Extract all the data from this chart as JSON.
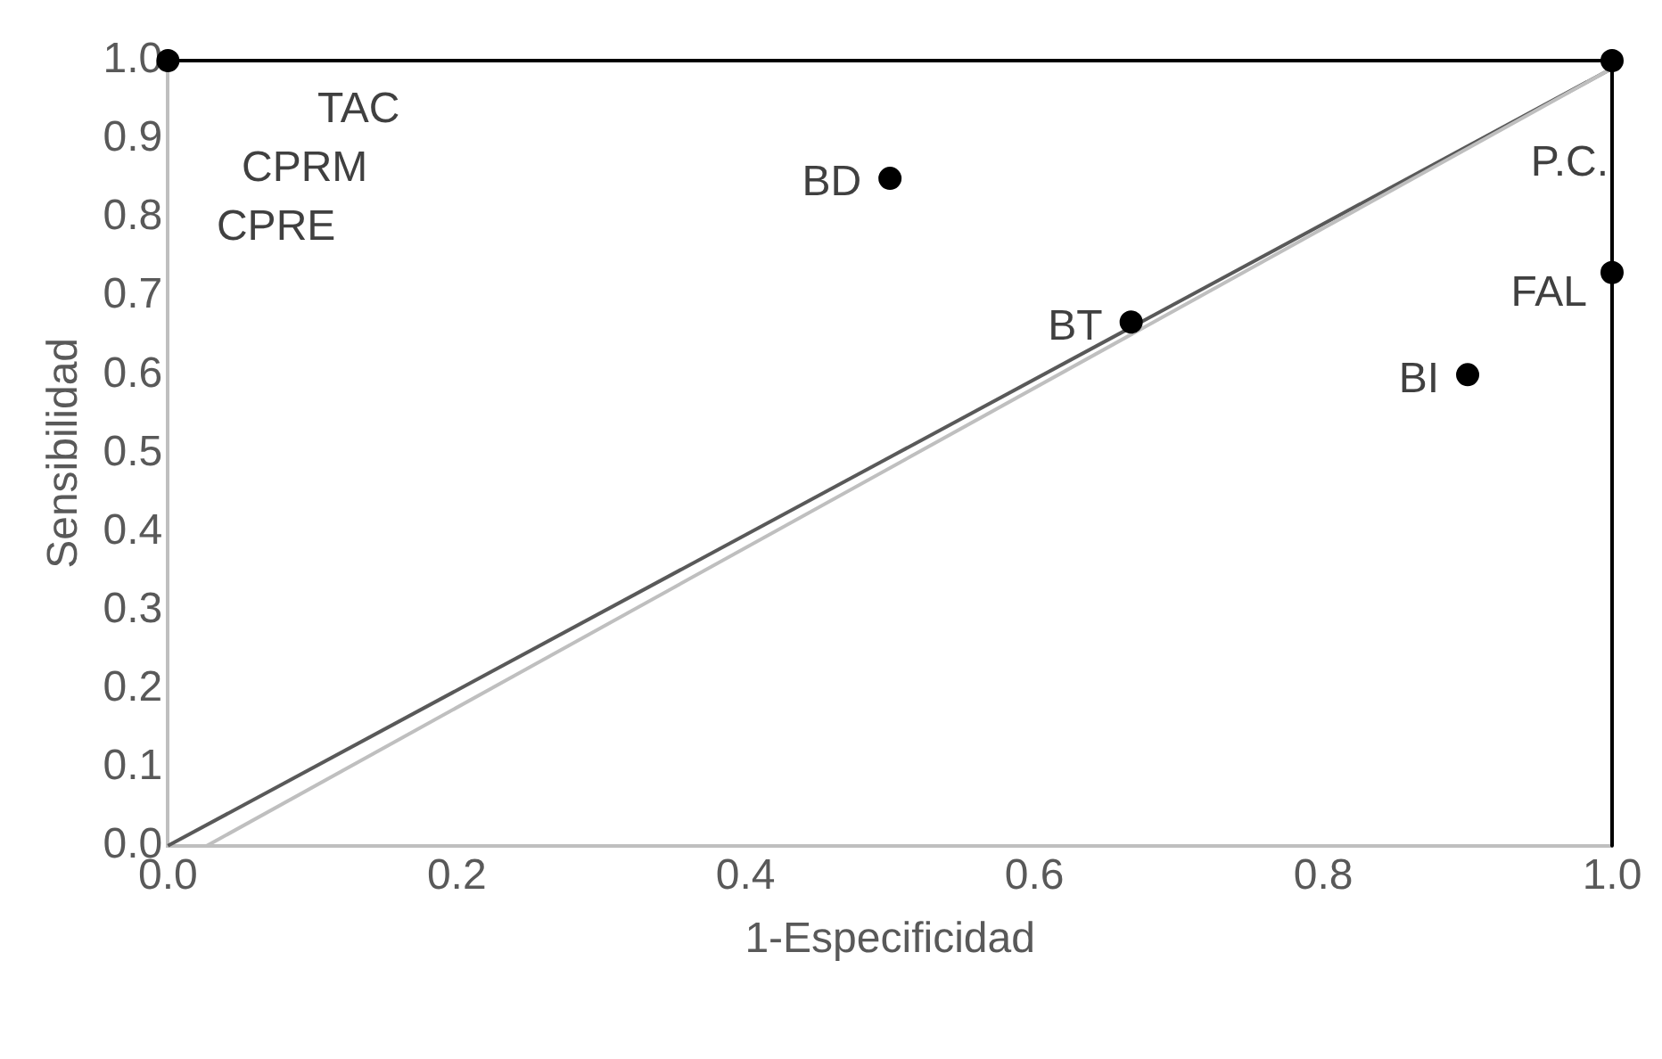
{
  "chart_data": {
    "type": "scatter",
    "xlabel": "1-Especificidad",
    "ylabel": "Sensibilidad",
    "xlim": [
      0,
      1
    ],
    "xticks": [
      {
        "value": 0,
        "label": "0.0"
      },
      {
        "value": 0.2,
        "label": "0.2"
      },
      {
        "value": 0.4,
        "label": "0.4"
      },
      {
        "value": 0.6,
        "label": "0.6"
      },
      {
        "value": 0.8,
        "label": "0.8"
      },
      {
        "value": 1,
        "label": "1.0"
      }
    ],
    "ylim": [
      0,
      1
    ],
    "yticks": [
      {
        "value": 0,
        "label": "0.0"
      },
      {
        "value": 0.1,
        "label": "0.1"
      },
      {
        "value": 0.2,
        "label": "0.2"
      },
      {
        "value": 0.3,
        "label": "0.3"
      },
      {
        "value": 0.4,
        "label": "0.4"
      },
      {
        "value": 0.5,
        "label": "0.5"
      },
      {
        "value": 0.6,
        "label": "0.6"
      },
      {
        "value": 0.7,
        "label": "0.7"
      },
      {
        "value": 0.8,
        "label": "0.8"
      },
      {
        "value": 0.9,
        "label": "0.9"
      },
      {
        "value": 1,
        "label": "1.0"
      }
    ],
    "grid": false,
    "legend": false,
    "series": [
      {
        "type": "line",
        "color": "#000000",
        "x": [
          0,
          1,
          1
        ],
        "values": [
          1,
          1,
          0
        ],
        "marker": "none"
      },
      {
        "type": "line",
        "color": "#595959",
        "x": [
          0,
          1
        ],
        "values": [
          0,
          0.99
        ],
        "marker": "none"
      },
      {
        "type": "line",
        "color": "#bfbfbf",
        "x": [
          0.027,
          1
        ],
        "values": [
          0,
          0.99
        ],
        "marker": "none"
      },
      {
        "color": "#000000",
        "x": [
          0,
          1,
          0.5,
          0.667,
          1,
          0.9
        ],
        "values": [
          1,
          1,
          0.85,
          0.667,
          0.73,
          0.6
        ],
        "marker": "circle"
      }
    ],
    "annotations": [
      "TAC",
      "CPRM",
      "CPRE",
      {
        "text": "P.C.",
        "x": 1,
        "y": 1
      },
      {
        "text": "BD",
        "x": 0.5,
        "y": 0.85
      },
      {
        "text": "BT",
        "x": 0.667,
        "y": 0.667
      },
      {
        "text": "FAL",
        "x": 1,
        "y": 0.73
      },
      {
        "text": "BI",
        "x": 0.9,
        "y": 0.6
      }
    ]
  }
}
